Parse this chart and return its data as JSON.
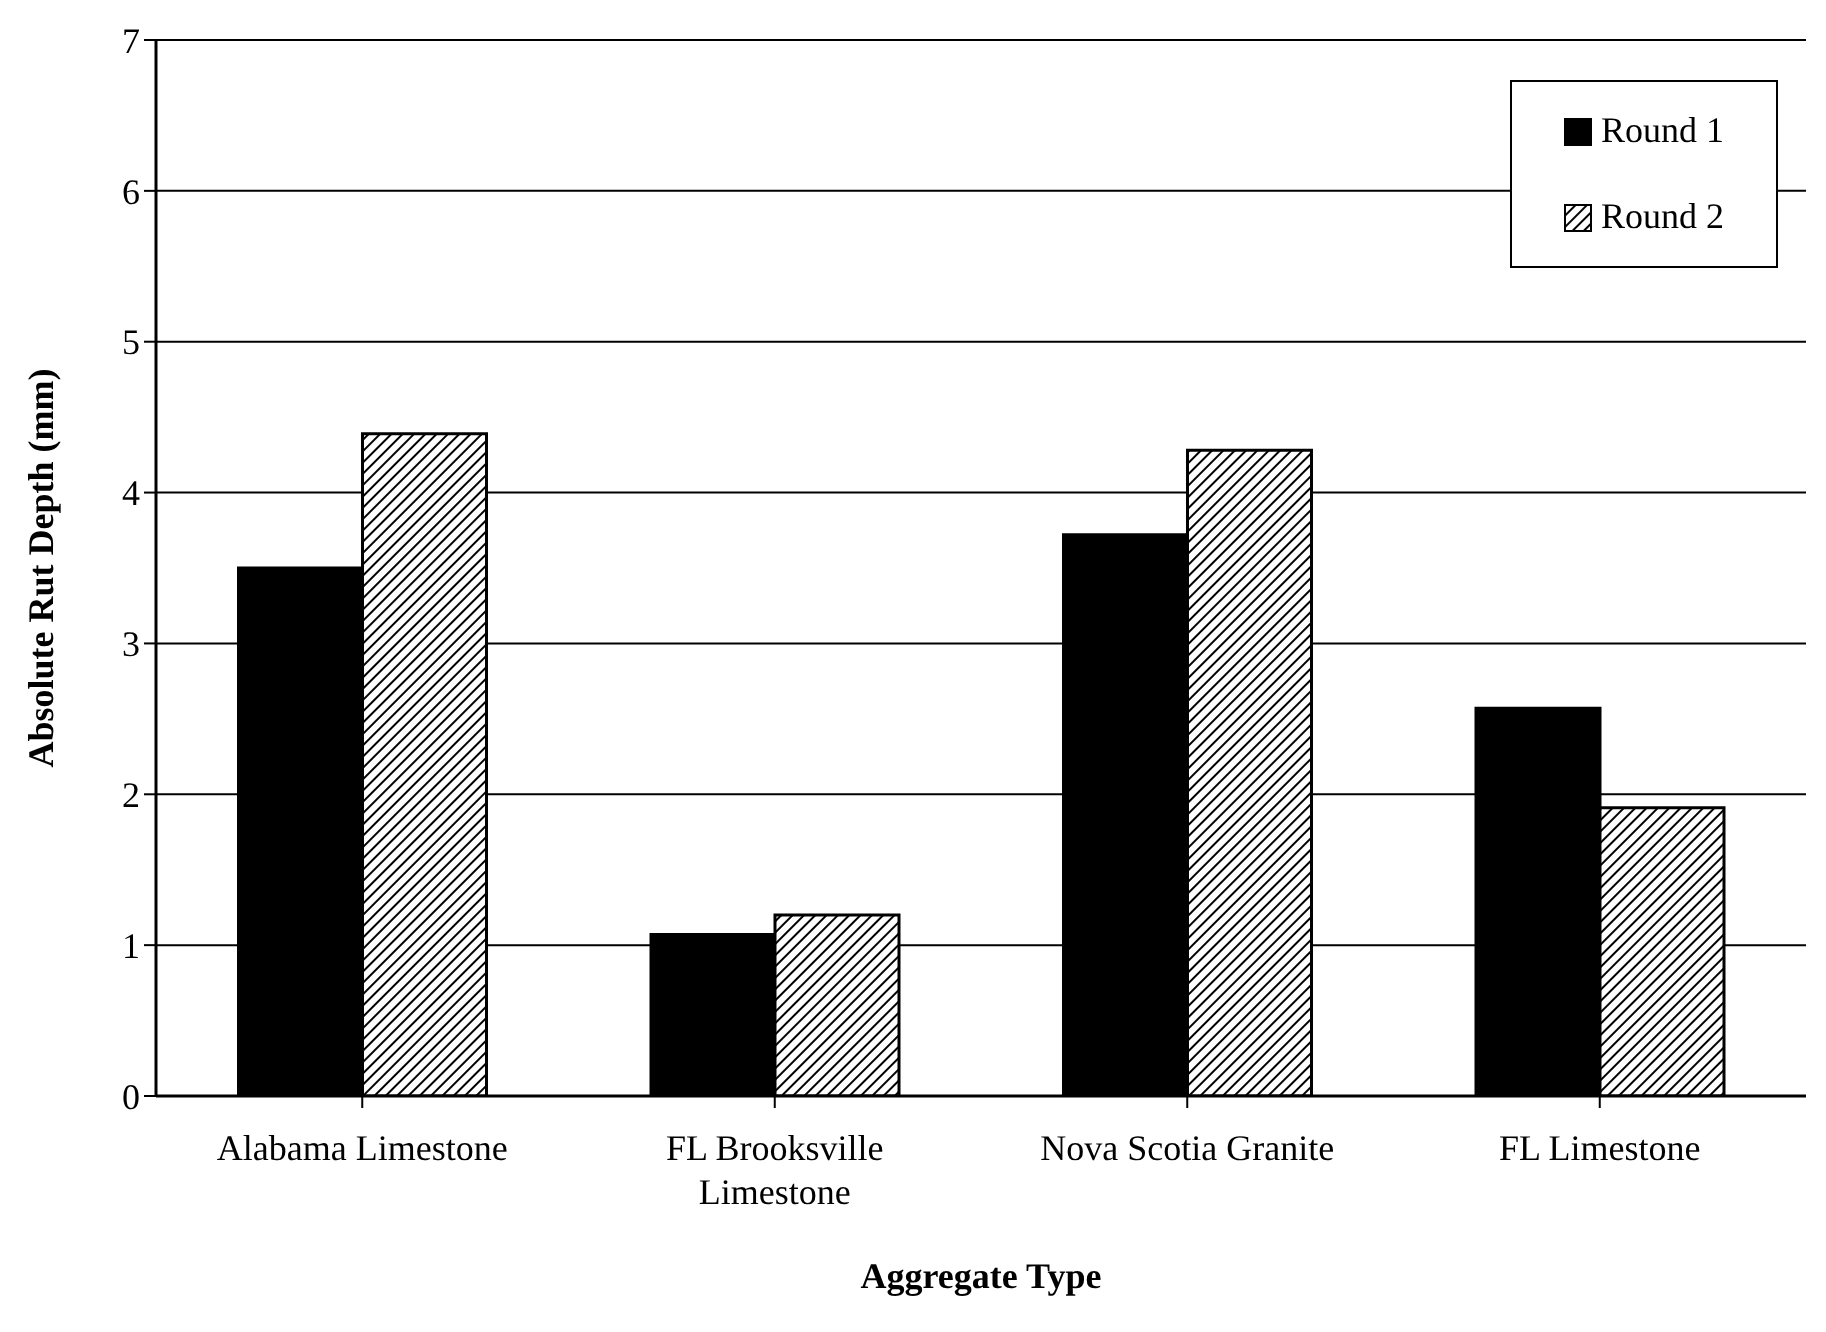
{
  "chart_data": {
    "type": "bar",
    "xlabel": "Aggregate Type",
    "ylabel": "Absolute Rut Depth (mm)",
    "categories": [
      "Alabama Limestone",
      "FL Brooksville Limestone",
      "Nova Scotia Granite",
      "FL Limestone"
    ],
    "series": [
      {
        "name": "Round 1",
        "color": "#000000",
        "values": [
          3.5,
          1.07,
          3.72,
          2.57
        ]
      },
      {
        "name": "Round 2",
        "color": "#000000",
        "values": [
          4.39,
          1.2,
          4.28,
          1.91
        ]
      }
    ],
    "ylim": [
      0,
      7
    ],
    "yticks": [
      0,
      1,
      2,
      3,
      4,
      5,
      6,
      7
    ],
    "grid": "y",
    "legend": "top right"
  }
}
